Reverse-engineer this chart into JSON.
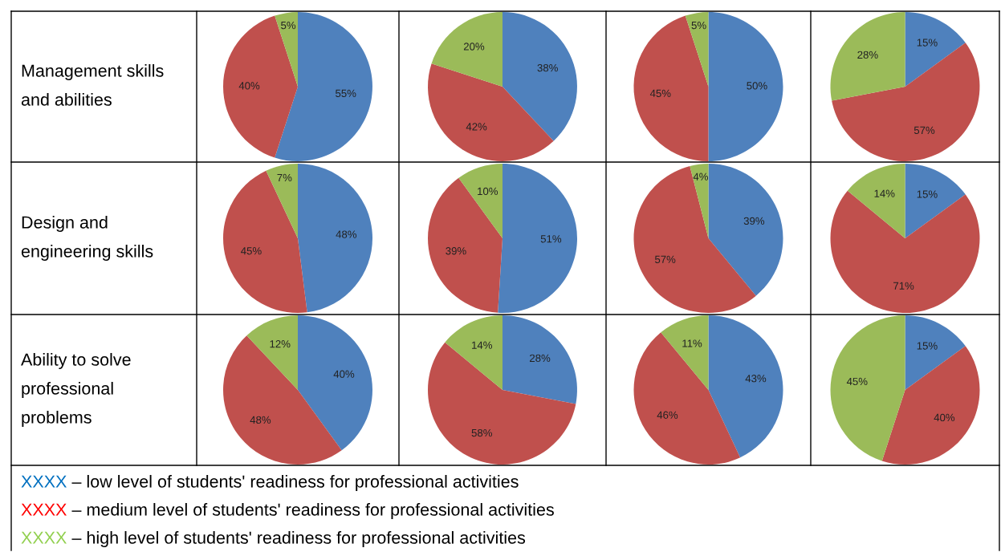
{
  "chart_data": [
    {
      "type": "pie",
      "ylabel": "Management skills and abilities",
      "categories": [
        null,
        null,
        null
      ],
      "values": [
        55,
        40,
        5
      ],
      "value_labels": [
        "55%",
        "40%",
        "5%"
      ],
      "colors": [
        "#4f81bd",
        "#c0504d",
        "#9bbb59"
      ]
    },
    {
      "type": "pie",
      "categories": [
        null,
        null,
        null
      ],
      "values": [
        38,
        42,
        20
      ],
      "value_labels": [
        "38%",
        "42%",
        "20%"
      ],
      "colors": [
        "#4f81bd",
        "#c0504d",
        "#9bbb59"
      ]
    },
    {
      "type": "pie",
      "categories": [
        null,
        null,
        null
      ],
      "values": [
        50,
        45,
        5
      ],
      "value_labels": [
        "50%",
        "45%",
        "5%"
      ],
      "colors": [
        "#4f81bd",
        "#c0504d",
        "#9bbb59"
      ]
    },
    {
      "type": "pie",
      "categories": [
        null,
        null,
        null
      ],
      "values": [
        15,
        57,
        28
      ],
      "value_labels": [
        "15%",
        "57%",
        "28%"
      ],
      "colors": [
        "#4f81bd",
        "#c0504d",
        "#9bbb59"
      ]
    },
    {
      "type": "pie",
      "ylabel": "Design and engineering skills",
      "categories": [
        null,
        null,
        null
      ],
      "values": [
        48,
        45,
        7
      ],
      "value_labels": [
        "48%",
        "45%",
        "7%"
      ],
      "colors": [
        "#4f81bd",
        "#c0504d",
        "#9bbb59"
      ]
    },
    {
      "type": "pie",
      "categories": [
        null,
        null,
        null
      ],
      "values": [
        51,
        39,
        10
      ],
      "value_labels": [
        "51%",
        "39%",
        "10%"
      ],
      "colors": [
        "#4f81bd",
        "#c0504d",
        "#9bbb59"
      ]
    },
    {
      "type": "pie",
      "categories": [
        null,
        null,
        null
      ],
      "values": [
        39,
        57,
        4
      ],
      "value_labels": [
        "39%",
        "57%",
        "4%"
      ],
      "colors": [
        "#4f81bd",
        "#c0504d",
        "#9bbb59"
      ]
    },
    {
      "type": "pie",
      "categories": [
        null,
        null,
        null
      ],
      "values": [
        15,
        71,
        14
      ],
      "value_labels": [
        "15%",
        "71%",
        "14%"
      ],
      "colors": [
        "#4f81bd",
        "#c0504d",
        "#9bbb59"
      ]
    },
    {
      "type": "pie",
      "ylabel": "Ability to solve professional problems",
      "categories": [
        null,
        null,
        null
      ],
      "values": [
        40,
        48,
        12
      ],
      "value_labels": [
        "40%",
        "48%",
        "12%"
      ],
      "colors": [
        "#4f81bd",
        "#c0504d",
        "#9bbb59"
      ]
    },
    {
      "type": "pie",
      "categories": [
        null,
        null,
        null
      ],
      "values": [
        28,
        58,
        14
      ],
      "value_labels": [
        "28%",
        "58%",
        "14%"
      ],
      "colors": [
        "#4f81bd",
        "#c0504d",
        "#9bbb59"
      ]
    },
    {
      "type": "pie",
      "categories": [
        null,
        null,
        null
      ],
      "values": [
        43,
        46,
        11
      ],
      "value_labels": [
        "43%",
        "46%",
        "11%"
      ],
      "colors": [
        "#4f81bd",
        "#c0504d",
        "#9bbb59"
      ]
    },
    {
      "type": "pie",
      "categories": [
        null,
        null,
        null
      ],
      "values": [
        15,
        40,
        45
      ],
      "value_labels": [
        "15%",
        "40%",
        "45%"
      ],
      "colors": [
        "#4f81bd",
        "#c0504d",
        "#9bbb59"
      ]
    },
    {
      "type": "other",
      "annotations": [
        "XXXX – low level of students' readiness for professional activities",
        "XXXX – medium level of students' readiness for professional activities",
        "XXXX – high level of students' readiness for professional activities"
      ],
      "colors": [
        "#0070c0",
        "#ff0000",
        "#92d050"
      ]
    }
  ]
}
